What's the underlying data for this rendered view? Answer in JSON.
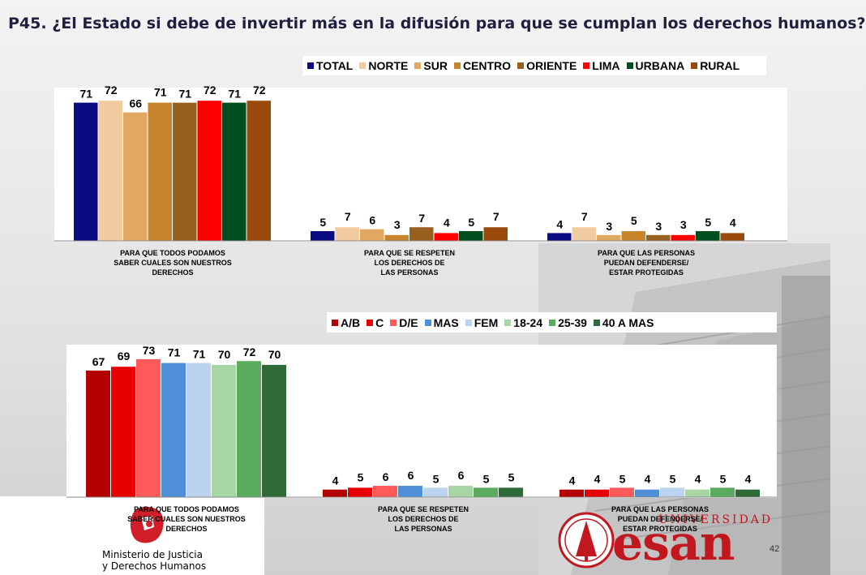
{
  "title": "P45. ¿El Estado si debe de invertir más en la difusión para que se cumplan los derechos humanos?",
  "page_number": "42",
  "footer": {
    "ministry_line1": "Ministerio de Justicia",
    "ministry_line2": "y Derechos Humanos",
    "esan_brand": "esan",
    "esan_university": "UNIVERSIDAD"
  },
  "chart_data": [
    {
      "type": "bar",
      "categories": [
        [
          "PARA QUE TODOS PODAMOS",
          "SABER CUALES SON NUESTROS",
          "DERECHOS"
        ],
        [
          "PARA QUE SE RESPETEN",
          "LOS DERECHOS DE",
          "LAS PERSONAS"
        ],
        [
          "PARA QUE LAS PERSONAS",
          "PUEDAN DEFENDERSE/",
          "ESTAR PROTEGIDAS"
        ]
      ],
      "series": [
        {
          "name": "TOTAL",
          "color": "#0a0a82",
          "values": [
            71,
            5,
            4
          ]
        },
        {
          "name": "NORTE",
          "color": "#f0cba0",
          "values": [
            72,
            7,
            7
          ]
        },
        {
          "name": "SUR",
          "color": "#e0a860",
          "values": [
            66,
            6,
            3
          ]
        },
        {
          "name": "CENTRO",
          "color": "#c8842a",
          "values": [
            71,
            3,
            5
          ]
        },
        {
          "name": "ORIENTE",
          "color": "#98601e",
          "values": [
            71,
            7,
            3
          ]
        },
        {
          "name": "LIMA",
          "color": "#ff0000",
          "values": [
            72,
            4,
            3
          ]
        },
        {
          "name": "URBANA",
          "color": "#004d1f",
          "values": [
            71,
            5,
            5
          ]
        },
        {
          "name": "RURAL",
          "color": "#9a4a0c",
          "values": [
            72,
            7,
            4
          ]
        }
      ],
      "ylim": [
        0,
        75
      ],
      "legend": "top-right"
    },
    {
      "type": "bar",
      "categories": [
        [
          "PARA QUE TODOS PODAMOS",
          "SABER CUALES SON NUESTROS",
          "DERECHOS"
        ],
        [
          "PARA QUE SE RESPETEN",
          "LOS DERECHOS DE",
          "LAS PERSONAS"
        ],
        [
          "PARA QUE LAS PERSONAS",
          "PUEDAN DEFENDERSE/",
          "ESTAR PROTEGIDAS"
        ]
      ],
      "series": [
        {
          "name": "A/B",
          "color": "#b30000",
          "values": [
            67,
            4,
            4
          ]
        },
        {
          "name": "C",
          "color": "#e60000",
          "values": [
            69,
            5,
            4
          ]
        },
        {
          "name": "D/E",
          "color": "#ff5a5a",
          "values": [
            73,
            6,
            5
          ]
        },
        {
          "name": "MAS",
          "color": "#4f8fd8",
          "values": [
            71,
            6,
            4
          ]
        },
        {
          "name": "FEM",
          "color": "#bcd3ef",
          "values": [
            71,
            5,
            5
          ]
        },
        {
          "name": "18-24",
          "color": "#a6d6a3",
          "values": [
            70,
            6,
            4
          ]
        },
        {
          "name": "25-39",
          "color": "#5aab5e",
          "values": [
            72,
            5,
            5
          ]
        },
        {
          "name": "40 A MAS",
          "color": "#2f6b38",
          "values": [
            70,
            5,
            4
          ]
        }
      ],
      "ylim": [
        0,
        75
      ],
      "legend": "top-right"
    }
  ]
}
